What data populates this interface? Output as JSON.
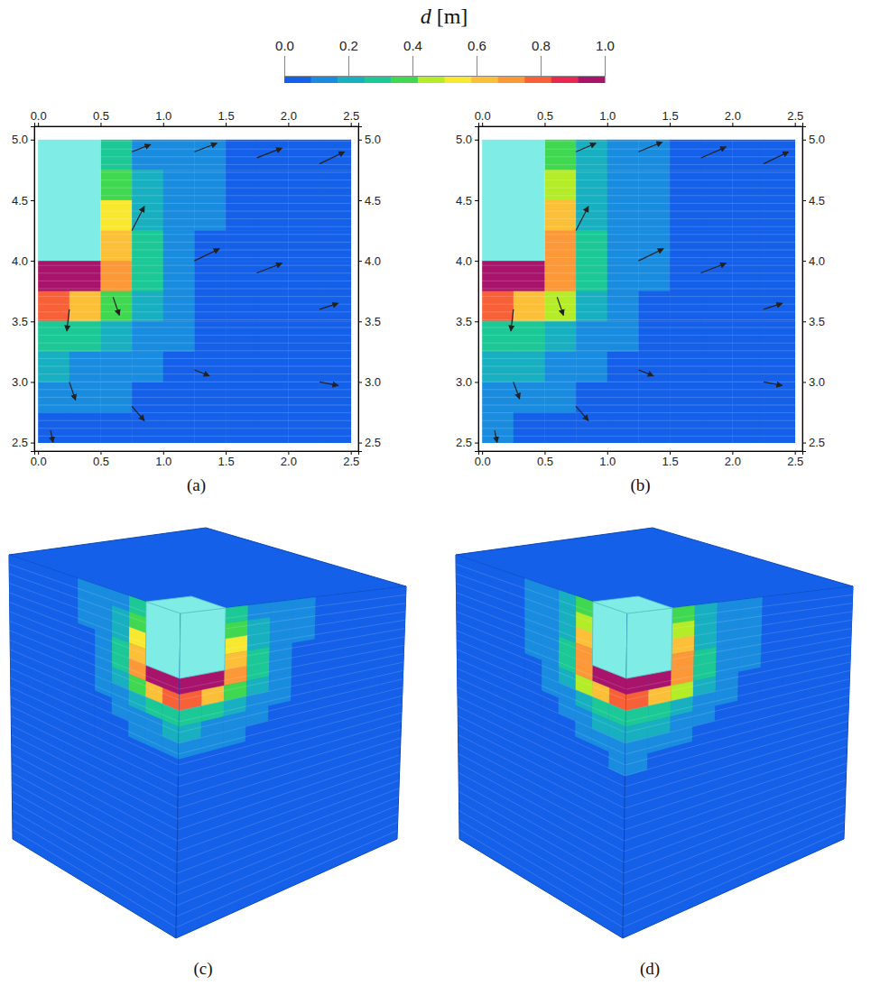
{
  "colorbar": {
    "title": "d [m]",
    "range": [
      0,
      1
    ],
    "ticks": [
      {
        "value": 0,
        "label": "0.0"
      },
      {
        "value": 0.2,
        "label": "0.2"
      },
      {
        "value": 0.4,
        "label": "0.4"
      },
      {
        "value": 0.6,
        "label": "0.6"
      },
      {
        "value": 0.8,
        "label": "0.8"
      },
      {
        "value": 1,
        "label": "1.0"
      }
    ],
    "colors": [
      "#1560e8",
      "#1a8ce0",
      "#18b0c0",
      "#1cc896",
      "#40d850",
      "#b4ec28",
      "#f8e830",
      "#fcc038",
      "#fc9838",
      "#f86038",
      "#e82850",
      "#a8146c"
    ]
  },
  "chart_data": [
    {
      "type": "heatmap",
      "title": "(a)",
      "xlim": [
        -0.03,
        2.56
      ],
      "ylim": [
        2.43,
        5.11
      ],
      "xticks": [
        {
          "value": 0,
          "label": "0.0"
        },
        {
          "value": 0.5,
          "label": "0.5"
        },
        {
          "value": 1,
          "label": "1.0"
        },
        {
          "value": 1.5,
          "label": "1.5"
        },
        {
          "value": 2,
          "label": "2.0"
        },
        {
          "value": 2.5,
          "label": "2.5"
        }
      ],
      "yticks": [
        {
          "value": 2.5,
          "label": "2.5"
        },
        {
          "value": 3,
          "label": "3.0"
        },
        {
          "value": 3.5,
          "label": "3.5"
        },
        {
          "value": 4,
          "label": "4.0"
        },
        {
          "value": 4.5,
          "label": "4.5"
        },
        {
          "value": 5,
          "label": "5.0"
        }
      ],
      "pile": {
        "x": [
          0,
          0.5
        ],
        "y": [
          4.0,
          5.0
        ],
        "color": "#80ece6"
      },
      "cells": {
        "x": [
          0,
          0.25,
          0.5,
          0.75,
          1.0,
          1.25,
          1.5,
          1.75,
          2.0,
          2.25,
          2.5
        ],
        "y": [
          5.0,
          4.75,
          4.5,
          4.25,
          4.0,
          3.75,
          3.5,
          3.25,
          3.0,
          2.75,
          2.5
        ],
        "values": [
          [
            null,
            null,
            0.3,
            0.15,
            0.12,
            0.12,
            0.05,
            0.05,
            0.03,
            0.03
          ],
          [
            null,
            null,
            0.4,
            0.18,
            0.12,
            0.1,
            0.05,
            0.04,
            0.03,
            0.03
          ],
          [
            null,
            null,
            0.55,
            0.2,
            0.13,
            0.1,
            0.05,
            0.04,
            0.03,
            0.03
          ],
          [
            null,
            null,
            0.65,
            0.25,
            0.15,
            0.08,
            0.05,
            0.04,
            0.03,
            0.02
          ],
          [
            1.0,
            1.0,
            0.7,
            0.3,
            0.15,
            0.08,
            0.05,
            0.04,
            0.03,
            0.02
          ],
          [
            0.75,
            0.6,
            0.4,
            0.22,
            0.12,
            0.07,
            0.04,
            0.03,
            0.02,
            0.02
          ],
          [
            0.3,
            0.28,
            0.22,
            0.15,
            0.1,
            0.06,
            0.04,
            0.03,
            0.02,
            0.02
          ],
          [
            0.18,
            0.16,
            0.14,
            0.11,
            0.08,
            0.05,
            0.03,
            0.02,
            0.02,
            0.01
          ],
          [
            0.12,
            0.11,
            0.1,
            0.08,
            0.06,
            0.04,
            0.03,
            0.02,
            0.01,
            0.01
          ],
          [
            0.08,
            0.08,
            0.07,
            0.06,
            0.05,
            0.03,
            0.02,
            0.02,
            0.01,
            0.01
          ]
        ]
      },
      "arrows": {
        "x": [
          0.75,
          1.25,
          1.75,
          2.25,
          0.75,
          1.25,
          1.75,
          2.25,
          0.25,
          0.6,
          0.25,
          0.75,
          1.25,
          2.25,
          0.1
        ],
        "y": [
          4.9,
          4.9,
          4.85,
          4.8,
          4.25,
          4.0,
          3.9,
          3.6,
          3.6,
          3.7,
          3.0,
          2.8,
          3.1,
          3.0,
          2.6
        ],
        "dx": [
          0.15,
          0.18,
          0.2,
          0.2,
          0.1,
          0.2,
          0.2,
          0.15,
          -0.02,
          0.05,
          0.05,
          0.1,
          0.12,
          0.15,
          0.02
        ],
        "dy": [
          0.06,
          0.07,
          0.08,
          0.1,
          0.2,
          0.1,
          0.08,
          0.05,
          -0.18,
          -0.15,
          -0.15,
          -0.12,
          -0.05,
          -0.03,
          -0.1
        ]
      },
      "view_3d": {
        "title": "(c)"
      }
    },
    {
      "type": "heatmap",
      "title": "(b)",
      "xlim": [
        -0.03,
        2.56
      ],
      "ylim": [
        2.43,
        5.11
      ],
      "xticks": [
        {
          "value": 0,
          "label": "0.0"
        },
        {
          "value": 0.5,
          "label": "0.5"
        },
        {
          "value": 1,
          "label": "1.0"
        },
        {
          "value": 1.5,
          "label": "1.5"
        },
        {
          "value": 2,
          "label": "2.0"
        },
        {
          "value": 2.5,
          "label": "2.5"
        }
      ],
      "yticks": [
        {
          "value": 2.5,
          "label": "2.5"
        },
        {
          "value": 3,
          "label": "3.0"
        },
        {
          "value": 3.5,
          "label": "3.5"
        },
        {
          "value": 4,
          "label": "4.0"
        },
        {
          "value": 4.5,
          "label": "4.5"
        },
        {
          "value": 5,
          "label": "5.0"
        }
      ],
      "pile": {
        "x": [
          0,
          0.5
        ],
        "y": [
          4.0,
          5.0
        ],
        "color": "#80ece6"
      },
      "cells": {
        "x": [
          0,
          0.25,
          0.5,
          0.75,
          1.0,
          1.25,
          1.5,
          1.75,
          2.0,
          2.25,
          2.5
        ],
        "y": [
          5.0,
          4.75,
          4.5,
          4.25,
          4.0,
          3.75,
          3.5,
          3.25,
          3.0,
          2.75,
          2.5
        ],
        "values": [
          [
            null,
            null,
            0.35,
            0.18,
            0.13,
            0.1,
            0.05,
            0.04,
            0.03,
            0.03
          ],
          [
            null,
            null,
            0.45,
            0.2,
            0.14,
            0.1,
            0.05,
            0.04,
            0.03,
            0.03
          ],
          [
            null,
            null,
            0.6,
            0.22,
            0.14,
            0.1,
            0.05,
            0.04,
            0.03,
            0.03
          ],
          [
            null,
            null,
            0.7,
            0.28,
            0.16,
            0.09,
            0.05,
            0.04,
            0.03,
            0.02
          ],
          [
            1.0,
            1.0,
            0.72,
            0.32,
            0.16,
            0.09,
            0.05,
            0.04,
            0.03,
            0.02
          ],
          [
            0.78,
            0.62,
            0.42,
            0.24,
            0.13,
            0.07,
            0.04,
            0.03,
            0.02,
            0.02
          ],
          [
            0.32,
            0.29,
            0.23,
            0.16,
            0.1,
            0.06,
            0.04,
            0.03,
            0.02,
            0.02
          ],
          [
            0.19,
            0.17,
            0.15,
            0.12,
            0.08,
            0.05,
            0.03,
            0.02,
            0.02,
            0.01
          ],
          [
            0.13,
            0.12,
            0.1,
            0.08,
            0.06,
            0.04,
            0.03,
            0.02,
            0.01,
            0.01
          ],
          [
            0.09,
            0.08,
            0.07,
            0.06,
            0.05,
            0.03,
            0.02,
            0.02,
            0.01,
            0.01
          ]
        ]
      },
      "arrows": {
        "x": [
          0.75,
          1.25,
          1.75,
          2.25,
          0.75,
          1.25,
          1.75,
          2.25,
          0.25,
          0.6,
          0.25,
          0.75,
          1.25,
          2.25,
          0.1
        ],
        "y": [
          4.9,
          4.9,
          4.85,
          4.8,
          4.25,
          4.0,
          3.9,
          3.6,
          3.6,
          3.7,
          3.0,
          2.8,
          3.1,
          3.0,
          2.6
        ],
        "dx": [
          0.16,
          0.19,
          0.2,
          0.2,
          0.1,
          0.2,
          0.2,
          0.15,
          -0.02,
          0.05,
          0.05,
          0.1,
          0.12,
          0.15,
          0.02
        ],
        "dy": [
          0.07,
          0.08,
          0.09,
          0.1,
          0.2,
          0.1,
          0.08,
          0.05,
          -0.18,
          -0.15,
          -0.14,
          -0.12,
          -0.05,
          -0.03,
          -0.1
        ]
      },
      "view_3d": {
        "title": "(d)"
      }
    }
  ]
}
